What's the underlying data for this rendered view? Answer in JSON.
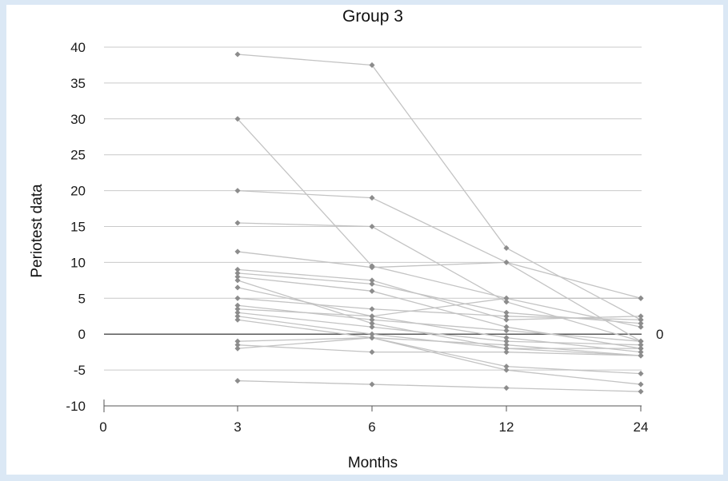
{
  "chart_data": {
    "type": "line",
    "title": "Group 3",
    "xlabel": "Months",
    "ylabel": "Periotest data",
    "x_ticks": [
      "0",
      "3",
      "6",
      "12",
      "24"
    ],
    "x": [
      3,
      6,
      12,
      24
    ],
    "ylim": [
      -10,
      40
    ],
    "y_ticks": [
      40,
      35,
      30,
      25,
      20,
      15,
      10,
      5,
      0,
      -5,
      -10
    ],
    "zero_line_label": "0",
    "grid": true,
    "legend": "none",
    "colors": {
      "series": "#c3c3c3",
      "marker": "#8c8c8c",
      "grid": "#c9c9c9",
      "zero_line": "#222222"
    },
    "series": [
      {
        "values": [
          39,
          37.5,
          12,
          2
        ]
      },
      {
        "values": [
          30,
          9.5,
          5,
          1
        ]
      },
      {
        "values": [
          20,
          19,
          10,
          -1
        ]
      },
      {
        "values": [
          15.5,
          15,
          4.5,
          -1
        ]
      },
      {
        "values": [
          11.5,
          9.3,
          10,
          5
        ]
      },
      {
        "values": [
          9,
          7.5,
          2,
          2.5
        ]
      },
      {
        "values": [
          8.5,
          7,
          3,
          1.5
        ]
      },
      {
        "values": [
          8,
          6,
          1,
          -2
        ]
      },
      {
        "values": [
          7.5,
          1.5,
          -2,
          -3
        ]
      },
      {
        "values": [
          6.5,
          2.5,
          -0.5,
          -2.5
        ]
      },
      {
        "values": [
          5,
          3.5,
          2.5,
          2
        ]
      },
      {
        "values": [
          4,
          2,
          0.5,
          -1
        ]
      },
      {
        "values": [
          3.5,
          2.5,
          5,
          5
        ]
      },
      {
        "values": [
          3,
          1,
          -1,
          -1.5
        ]
      },
      {
        "values": [
          2.5,
          0,
          -2,
          -2
        ]
      },
      {
        "values": [
          2,
          -0.5,
          -5,
          -7
        ]
      },
      {
        "values": [
          -1,
          -0.5,
          -1.5,
          -3
        ]
      },
      {
        "values": [
          -1.5,
          -2.5,
          -2.5,
          -3
        ]
      },
      {
        "values": [
          -2,
          -0.5,
          -4.5,
          -5.5
        ]
      },
      {
        "values": [
          -6.5,
          -7,
          -7.5,
          -8
        ]
      }
    ]
  }
}
